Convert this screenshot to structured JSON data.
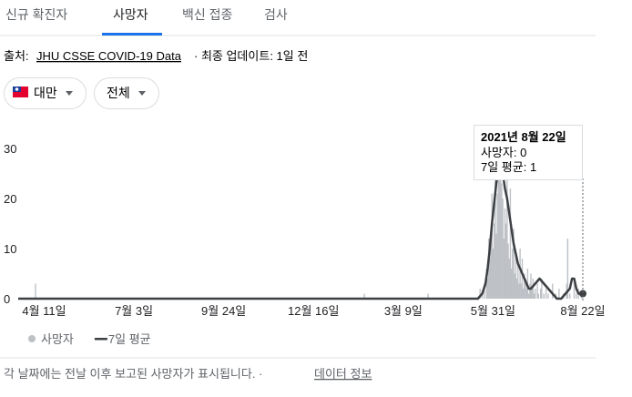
{
  "tabs": [
    "신규 확진자",
    "사망자",
    "백신 접종",
    "검사"
  ],
  "source": {
    "prefix": "출처:",
    "link": "JHU CSSE COVID-19 Data",
    "suffix": "· 최종 업데이트: 1일 전"
  },
  "filters": [
    "대만",
    "전체"
  ],
  "tooltip": {
    "title": "2021년 8월 22일",
    "lines": [
      "사망자: 0",
      "7일 평균: 1"
    ]
  },
  "footer": {
    "note": "각 날짜에는 전날 이후 보고된 사망자가 표시됩니다. ·",
    "link": "데이터 정보"
  },
  "chart_data": {
    "type": "bar-line",
    "xlim": [
      -24,
      498
    ],
    "ylim": [
      0,
      32
    ],
    "yticks": [
      0,
      10,
      20,
      30
    ],
    "xticks": [
      {
        "value": 0,
        "label": "4월 11일"
      },
      {
        "value": 83,
        "label": "7월 3일"
      },
      {
        "value": 166,
        "label": "9월 24일"
      },
      {
        "value": 249,
        "label": "12월 16일"
      },
      {
        "value": 332,
        "label": "3월 9일"
      },
      {
        "value": 415,
        "label": "5월 31일"
      },
      {
        "value": 498,
        "label": "8월 22일"
      }
    ],
    "series": [
      {
        "name": "사망자",
        "color": "#bdc1c6",
        "kind": "bar",
        "x": [
          -8,
          296,
          355,
          403,
          405,
          407,
          409,
          410,
          411,
          412,
          413,
          414,
          415,
          416,
          417,
          418,
          419,
          420,
          421,
          422,
          423,
          424,
          425,
          426,
          427,
          428,
          429,
          430,
          431,
          432,
          433,
          434,
          435,
          436,
          437,
          438,
          439,
          440,
          441,
          442,
          443,
          444,
          445,
          446,
          447,
          448,
          449,
          450,
          451,
          452,
          453,
          454,
          456,
          457,
          459,
          460,
          462,
          464,
          466,
          470,
          473,
          476,
          480,
          483,
          484,
          486,
          490,
          492,
          494,
          497
        ],
        "values": [
          3,
          1,
          1,
          2,
          1,
          3,
          6,
          4,
          12,
          8,
          13,
          21,
          10,
          15,
          24,
          13,
          21,
          26,
          28,
          25,
          23,
          20,
          12,
          18,
          15,
          26,
          11,
          8,
          22,
          6,
          10,
          14,
          5,
          9,
          4,
          7,
          3,
          10,
          3,
          8,
          2,
          5,
          4,
          2,
          6,
          1,
          3,
          5,
          2,
          4,
          1,
          2,
          3,
          1,
          2,
          4,
          1,
          2,
          1,
          3,
          1,
          2,
          1,
          3,
          12,
          1,
          4,
          1,
          2,
          1
        ]
      },
      {
        "name": "7일 평균",
        "color": "#3c4043",
        "kind": "line",
        "x": [
          -24,
          401,
          405,
          408,
          410,
          412,
          414,
          416,
          418,
          420,
          422,
          424,
          426,
          428,
          430,
          432,
          434,
          436,
          438,
          440,
          442,
          444,
          446,
          448,
          450,
          454,
          458,
          462,
          466,
          470,
          474,
          478,
          482,
          486,
          488,
          490,
          492,
          494,
          498
        ],
        "values": [
          0,
          0,
          1,
          3,
          6,
          10,
          15,
          19,
          23,
          26,
          27,
          25,
          22,
          20,
          17,
          14,
          11,
          9,
          7,
          6,
          5,
          4,
          3,
          2,
          2,
          3,
          4,
          3,
          2,
          1,
          0,
          0,
          1,
          2,
          4,
          4,
          2,
          1,
          1
        ]
      }
    ]
  }
}
